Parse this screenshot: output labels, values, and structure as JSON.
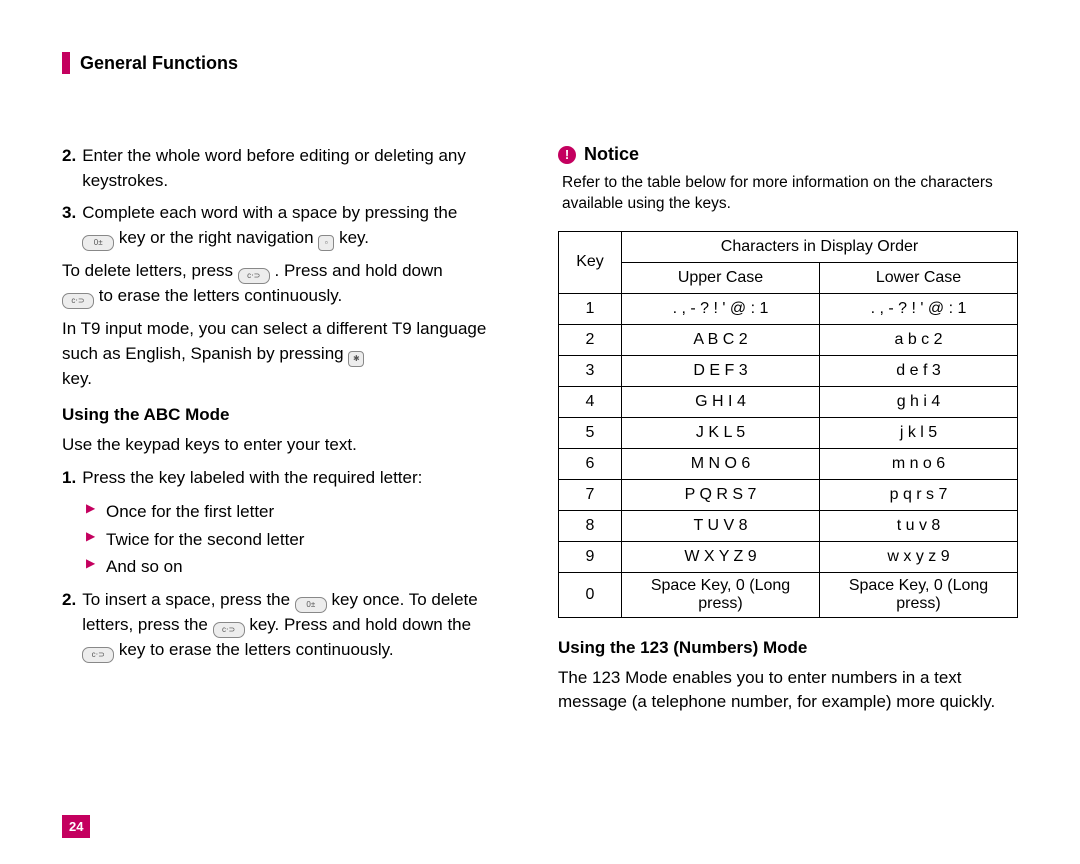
{
  "header": {
    "title": "General Functions"
  },
  "left": {
    "items2_num": "2.",
    "items2_text": "Enter the whole word before editing or deleting any keystrokes.",
    "items3_num": "3.",
    "items3_text_a": "Complete each word with a space by pressing the ",
    "items3_text_b": " key or the right navigation ",
    "items3_text_c": " key.",
    "delete_a": "To delete letters, press ",
    "delete_b": " . Press and hold down ",
    "delete_c": " to erase the letters continuously.",
    "t9_a": "In T9 input mode, you can select a different T9 language such as English, Spanish by pressing ",
    "t9_b": " key.",
    "abc_heading": "Using the ABC Mode",
    "abc_intro": "Use the keypad keys to enter your text.",
    "abc1_num": "1.",
    "abc1_text": "Press the key labeled with the required letter:",
    "bullets": [
      "Once for the first letter",
      "Twice for the second letter",
      "And so on"
    ],
    "abc2_num": "2.",
    "abc2_a": "To insert a space, press the ",
    "abc2_b": " key once. To delete letters, press the ",
    "abc2_c": " key. Press and hold down the ",
    "abc2_d": " key to erase the letters continuously."
  },
  "right": {
    "notice_label": "Notice",
    "notice_text": "Refer to the table below for more information on the characters available using the keys.",
    "table": {
      "key_header": "Key",
      "span_header": "Characters in Display Order",
      "upper_header": "Upper Case",
      "lower_header": "Lower Case",
      "rows": [
        {
          "key": "1",
          "upper": ". , - ? ! ' @ : 1",
          "lower": ". , - ? ! ' @ : 1"
        },
        {
          "key": "2",
          "upper": "A B C 2",
          "lower": "a b c 2"
        },
        {
          "key": "3",
          "upper": "D E F 3",
          "lower": "d e f 3"
        },
        {
          "key": "4",
          "upper": "G H I 4",
          "lower": "g h i 4"
        },
        {
          "key": "5",
          "upper": "J K L 5",
          "lower": "j k l 5"
        },
        {
          "key": "6",
          "upper": "M N O 6",
          "lower": "m n o 6"
        },
        {
          "key": "7",
          "upper": "P Q R S 7",
          "lower": "p q r s 7"
        },
        {
          "key": "8",
          "upper": "T U V 8",
          "lower": "t u v 8"
        },
        {
          "key": "9",
          "upper": "W X Y Z 9",
          "lower": "w x y z 9"
        },
        {
          "key": "0",
          "upper": "Space Key, 0 (Long press)",
          "lower": "Space Key, 0 (Long press)"
        }
      ]
    },
    "mode123_heading": "Using the 123 (Numbers) Mode",
    "mode123_text": "The 123 Mode enables you to enter numbers in a text message (a telephone number, for example) more quickly."
  },
  "page_number": "24",
  "colors": {
    "accent": "#c4005f",
    "text": "#000000",
    "background": "#ffffff"
  }
}
